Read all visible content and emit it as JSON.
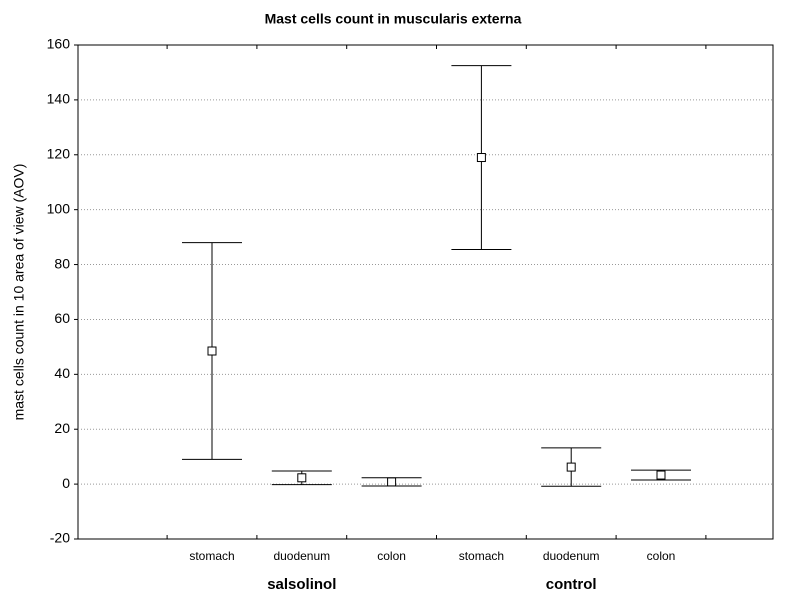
{
  "chart_data": {
    "type": "errorbar",
    "title": "Mast cells count in muscularis externa",
    "y_label": "mast cells count in 10 area of view (AOV)",
    "categories": [
      "stomach",
      "duodenum",
      "colon",
      "stomach",
      "duodenum",
      "colon"
    ],
    "groups": [
      "salsolinol",
      "control"
    ],
    "series": [
      {
        "values": [
          48.5,
          2.3,
          0.8,
          119,
          6.2,
          3.3
        ],
        "errors": [
          39.5,
          2.5,
          1.5,
          33.5,
          7,
          1.8
        ],
        "color": "#000000"
      }
    ],
    "ylim": [
      -20,
      160
    ],
    "yticks": [
      -20,
      0,
      20,
      40,
      60,
      80,
      100,
      120,
      140,
      160
    ],
    "grid": true
  }
}
